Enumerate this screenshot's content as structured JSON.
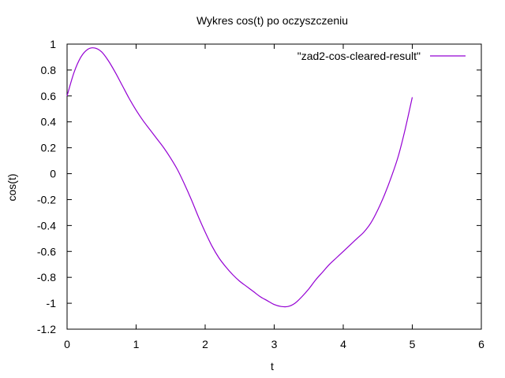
{
  "chart_data": {
    "type": "line",
    "title": "Wykres cos(t) po oczyszczeniu",
    "xlabel": "t",
    "ylabel": "cos(t)",
    "xlim": [
      0,
      6
    ],
    "ylim": [
      -1.2,
      1
    ],
    "xticks": [
      "0",
      "1",
      "2",
      "3",
      "4",
      "5",
      "6"
    ],
    "xtick_values": [
      0,
      1,
      2,
      3,
      4,
      5,
      6
    ],
    "yticks": [
      "1",
      "0.8",
      "0.6",
      "0.4",
      "0.2",
      "0",
      "-0.2",
      "-0.4",
      "-0.6",
      "-0.8",
      "-1",
      "-1.2"
    ],
    "ytick_values": [
      1,
      0.8,
      0.6,
      0.4,
      0.2,
      0,
      -0.2,
      -0.4,
      -0.6,
      -0.8,
      -1,
      -1.2
    ],
    "grid": false,
    "legend_position": "top-right",
    "series": [
      {
        "name": "\"zad2-cos-cleared-result\"",
        "color": "#9400d3",
        "x": [
          0,
          0.1,
          0.2,
          0.3,
          0.4,
          0.5,
          0.6,
          0.7,
          0.8,
          0.9,
          1.0,
          1.1,
          1.2,
          1.3,
          1.4,
          1.5,
          1.6,
          1.7,
          1.8,
          1.9,
          2.0,
          2.1,
          2.2,
          2.3,
          2.4,
          2.5,
          2.6,
          2.7,
          2.8,
          2.9,
          3.0,
          3.1,
          3.2,
          3.3,
          3.4,
          3.5,
          3.6,
          3.7,
          3.8,
          3.9,
          4.0,
          4.1,
          4.2,
          4.3,
          4.4,
          4.5,
          4.6,
          4.7,
          4.8,
          4.9,
          5.0
        ],
        "y": [
          0.6,
          0.78,
          0.9,
          0.96,
          0.97,
          0.94,
          0.87,
          0.78,
          0.68,
          0.58,
          0.49,
          0.41,
          0.34,
          0.27,
          0.2,
          0.12,
          0.03,
          -0.08,
          -0.2,
          -0.33,
          -0.45,
          -0.56,
          -0.65,
          -0.72,
          -0.78,
          -0.83,
          -0.87,
          -0.91,
          -0.95,
          -0.98,
          -1.01,
          -1.025,
          -1.025,
          -1.0,
          -0.95,
          -0.89,
          -0.82,
          -0.76,
          -0.7,
          -0.65,
          -0.6,
          -0.55,
          -0.5,
          -0.45,
          -0.38,
          -0.28,
          -0.16,
          -0.02,
          0.14,
          0.35,
          0.59
        ]
      }
    ]
  }
}
